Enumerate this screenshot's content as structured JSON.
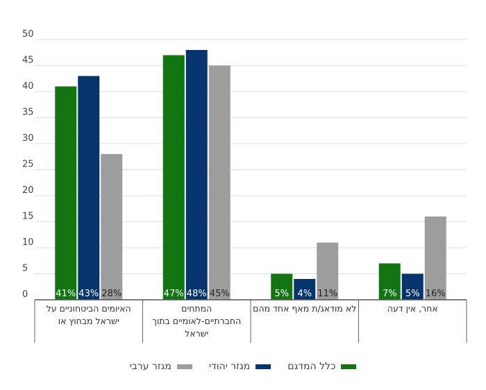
{
  "chart_data": {
    "type": "bar",
    "categories": [
      "האיומים הביטחוניים על ישראל מבחוץ או",
      "המתחים החברתיים-לאומיים בתוך ישראל",
      "לא מודאג/ת מאף אחד מהם",
      "אחר, אין דעה"
    ],
    "category_lines": [
      [
        "האיומים הביטחוניים על",
        "ישראל מבחוץ או"
      ],
      [
        "המתחים",
        "החברתיים-לאומיים בתוך",
        "ישראל"
      ],
      [
        "לא מודאג/ת מאף אחד מהם"
      ],
      [
        "אחר, אין דעה"
      ]
    ],
    "series": [
      {
        "name": "כלל המדגם",
        "values": [
          41,
          47,
          5,
          7
        ],
        "labels": [
          "41%",
          "47%",
          "5%",
          "7%"
        ],
        "color": "#137512"
      },
      {
        "name": "מגזר יהודי",
        "values": [
          43,
          48,
          4,
          5
        ],
        "labels": [
          "43%",
          "48%",
          "4%",
          "5%"
        ],
        "color": "#06356d"
      },
      {
        "name": "מגזר ערבי",
        "values": [
          28,
          45,
          11,
          16
        ],
        "labels": [
          "28%",
          "45%",
          "11%",
          "16%"
        ],
        "color": "#9d9d9d"
      }
    ],
    "yticks": [
      0,
      5,
      10,
      15,
      20,
      25,
      30,
      35,
      40,
      45,
      50
    ],
    "ylim": [
      0,
      50
    ],
    "grid": true,
    "legend_position": "bottom"
  }
}
